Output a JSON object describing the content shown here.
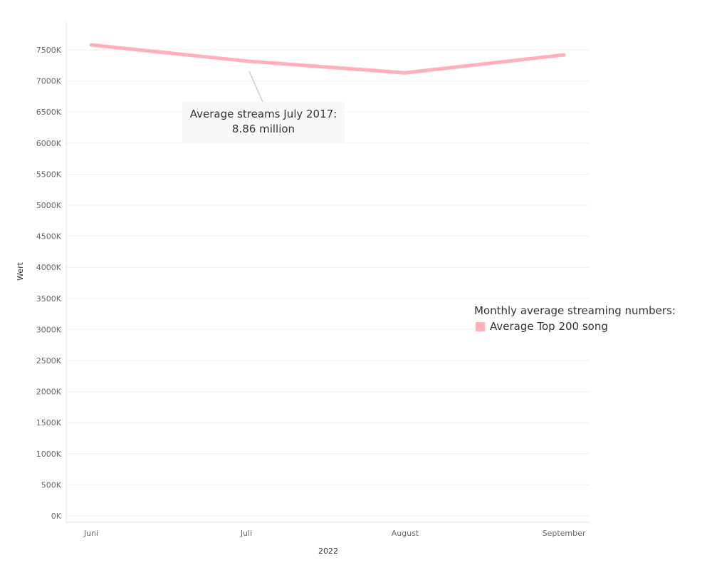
{
  "chart_data": {
    "type": "line",
    "x_title": "2022",
    "y_title": "Wert",
    "categories": [
      "Juni",
      "Juli",
      "August",
      "September"
    ],
    "series": [
      {
        "name": "Average Top 200 song",
        "color": "#ffb0ba",
        "values": [
          7580,
          7320,
          7130,
          7420
        ]
      }
    ],
    "y_ticks": [
      0,
      500,
      1000,
      1500,
      2000,
      2500,
      3000,
      3500,
      4000,
      4500,
      5000,
      5500,
      6000,
      6500,
      7000,
      7500
    ],
    "y_tick_labels": [
      "0K",
      "500K",
      "1000K",
      "1500K",
      "2000K",
      "2500K",
      "3000K",
      "3500K",
      "4000K",
      "4500K",
      "5000K",
      "5500K",
      "6000K",
      "6500K",
      "7000K",
      "7500K"
    ],
    "ylim": [
      0,
      7500
    ],
    "grid": true,
    "annotation": {
      "line1": "Average streams July 2017:",
      "line2": "8.86 million"
    },
    "legend": {
      "title": "Monthly average streaming numbers:",
      "placement": "right"
    }
  }
}
